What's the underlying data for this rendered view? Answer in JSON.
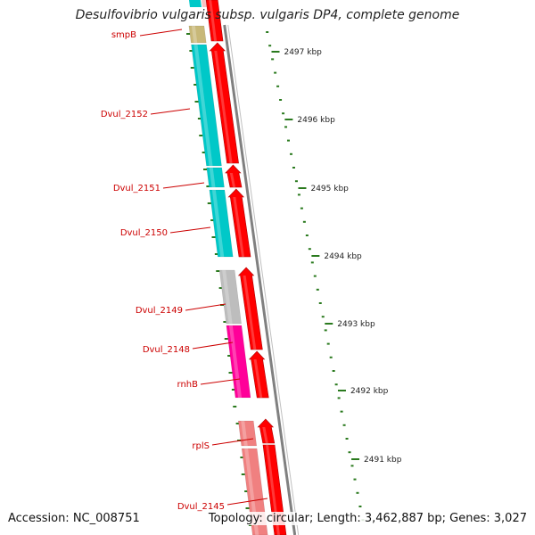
{
  "title": "Desulfovibrio vulgaris subsp. vulgaris DP4, complete genome",
  "footer": {
    "accession": "Accession: NC_008751",
    "summary": "Topology: circular; Length: 3,462,887 bp; Genes: 3,027"
  },
  "colors": {
    "forward_cds": "#ff0000",
    "tick": "#2a7a1e",
    "label": "#cc0000",
    "backbone": "#808080"
  },
  "kbp_ticks": [
    {
      "kbp": 2497,
      "label": "2497 kbp"
    },
    {
      "kbp": 2496,
      "label": "2496 kbp"
    },
    {
      "kbp": 2495,
      "label": "2495 kbp"
    },
    {
      "kbp": 2494,
      "label": "2494 kbp"
    },
    {
      "kbp": 2493,
      "label": "2493 kbp"
    },
    {
      "kbp": 2492,
      "label": "2492 kbp"
    },
    {
      "kbp": 2491,
      "label": "2491 kbp"
    }
  ],
  "genes": [
    {
      "name": "smpB",
      "color": "#c8b878"
    },
    {
      "name": "Dvul_2152",
      "color": "#00c8c8"
    },
    {
      "name": "Dvul_2151",
      "color": "#00c8c8"
    },
    {
      "name": "Dvul_2150",
      "color": "#00c8c8"
    },
    {
      "name": "Dvul_2149",
      "color": "#bdbdbd"
    },
    {
      "name": "Dvul_2148",
      "color": "#ff0099"
    },
    {
      "name": "rnhB",
      "color": "#ff0099"
    },
    {
      "name": "rplS",
      "color": "#f08080"
    },
    {
      "name": "Dvul_2145",
      "color": "#f08080"
    }
  ]
}
